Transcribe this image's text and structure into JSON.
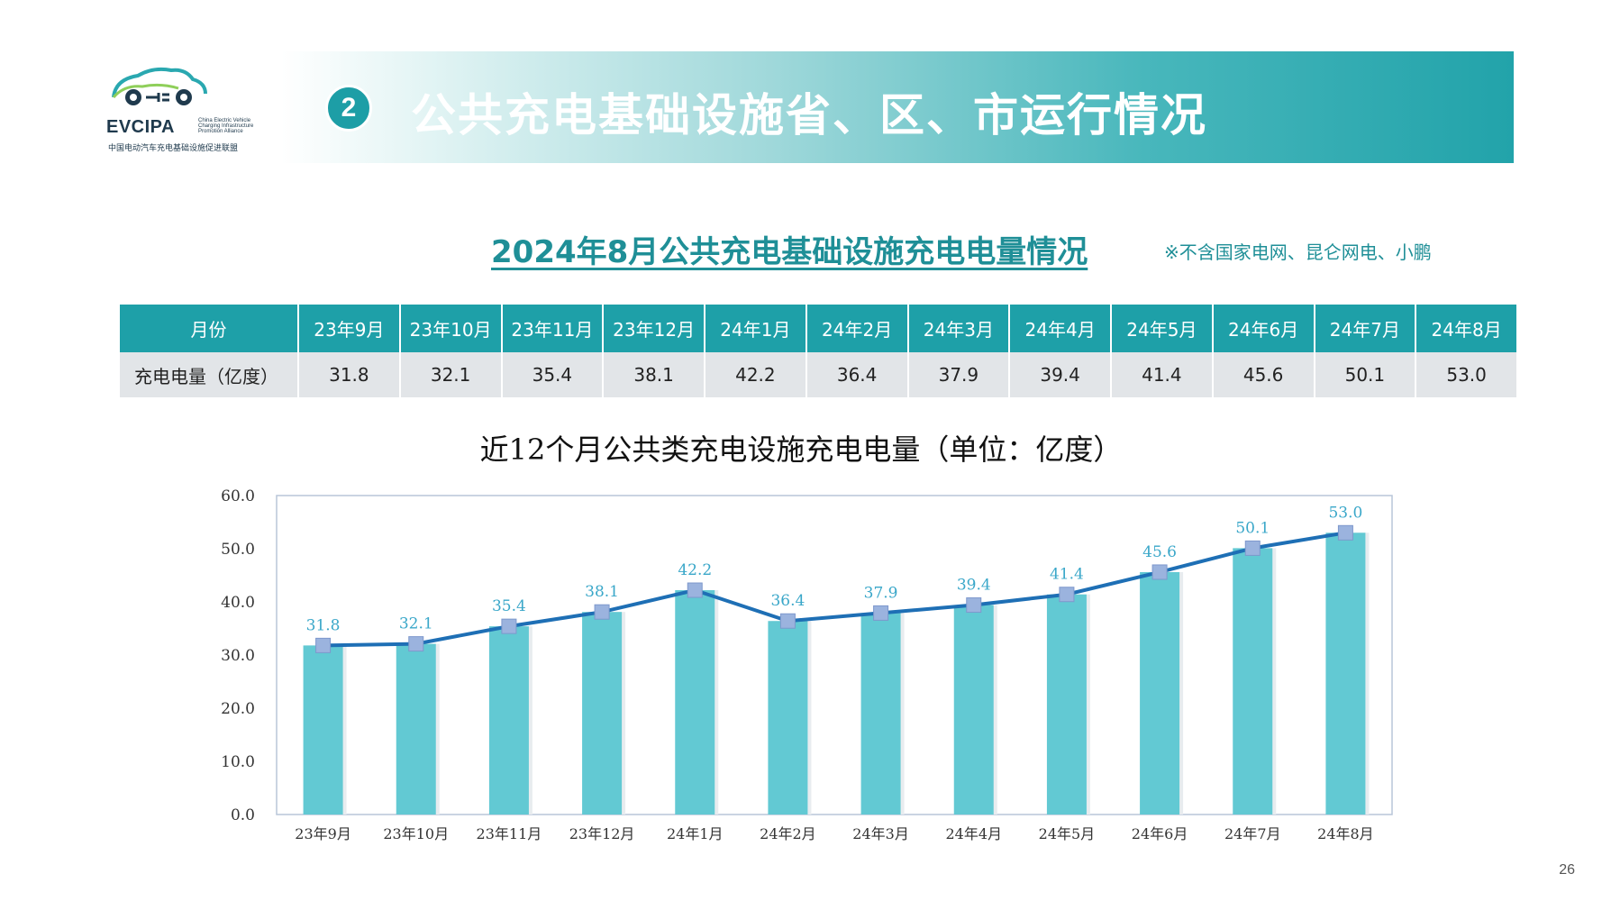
{
  "logo": {
    "word": "EVCIPA",
    "english": "China Electric Vehicle Charging Infrastructure Promotion Alliance",
    "chinese": "中国电动汽车充电基础设施促进联盟"
  },
  "banner": {
    "badge": "2",
    "title": "公共充电基础设施省、区、市运行情况"
  },
  "subtitle": "2024年8月公共充电基础设施充电电量情况",
  "note": "※不含国家电网、昆仑网电、小鹏",
  "table": {
    "header_label": "月份",
    "row_label": "充电电量（亿度）",
    "months": [
      "23年9月",
      "23年10月",
      "23年11月",
      "23年12月",
      "24年1月",
      "24年2月",
      "24年3月",
      "24年4月",
      "24年5月",
      "24年6月",
      "24年7月",
      "24年8月"
    ],
    "values": [
      "31.8",
      "32.1",
      "35.4",
      "38.1",
      "42.2",
      "36.4",
      "37.9",
      "39.4",
      "41.4",
      "45.6",
      "50.1",
      "53.0"
    ]
  },
  "chart_data": {
    "type": "bar",
    "title": "近12个月公共类充电设施充电电量（单位：亿度）",
    "categories": [
      "23年9月",
      "23年10月",
      "23年11月",
      "23年12月",
      "24年1月",
      "24年2月",
      "24年3月",
      "24年4月",
      "24年5月",
      "24年6月",
      "24年7月",
      "24年8月"
    ],
    "values": [
      31.8,
      32.1,
      35.4,
      38.1,
      42.2,
      36.4,
      37.9,
      39.4,
      41.4,
      45.6,
      50.1,
      53.0
    ],
    "value_labels": [
      "31.8",
      "32.1",
      "35.4",
      "38.1",
      "42.2",
      "36.4",
      "37.9",
      "39.4",
      "41.4",
      "45.6",
      "50.1",
      "53.0"
    ],
    "ylim": [
      0,
      60
    ],
    "yticks": [
      "0.0",
      "10.0",
      "20.0",
      "30.0",
      "40.0",
      "50.0",
      "60.0"
    ],
    "overlay_line": true,
    "colors": {
      "bar": "#62c9d3",
      "line": "#1e6fb5",
      "marker": "#9bb3de",
      "label": "#3aa7c9"
    }
  },
  "page_number": "26"
}
